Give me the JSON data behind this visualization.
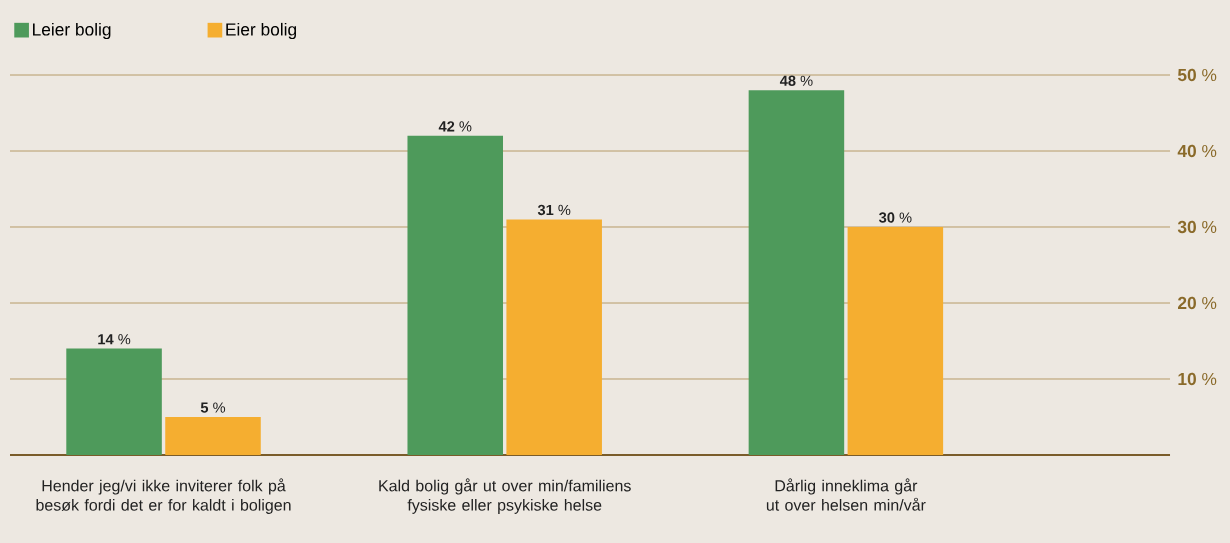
{
  "chart_data": {
    "type": "bar",
    "categories": [
      "Hender jeg/vi ikke inviterer folk på besøk fordi det er for kaldt i boligen",
      "Kald bolig går ut over min/familiens fysiske eller psykiske helse",
      "Dårlig inneklima går ut over helsen min/vår"
    ],
    "series": [
      {
        "name": "Leier bolig",
        "color": "#4e9a5b",
        "values": [
          14,
          42,
          48
        ],
        "value_labels": [
          "**14** %",
          "**42** %",
          "**48** %"
        ]
      },
      {
        "name": "Eier bolig",
        "color": "#f5ae30",
        "values": [
          5,
          31,
          30
        ],
        "value_labels": [
          "**5** %",
          "**31** %",
          "**30** %"
        ]
      }
    ],
    "ylim": [
      0,
      50
    ],
    "yticks": [
      {
        "value": 10,
        "label": "**10** %"
      },
      {
        "value": 20,
        "label": "**20** %"
      },
      {
        "value": 30,
        "label": "**30** %"
      },
      {
        "value": 40,
        "label": "**40** %"
      },
      {
        "value": 50,
        "label": "**50** %"
      }
    ],
    "grid": "y",
    "legend": "top left"
  }
}
